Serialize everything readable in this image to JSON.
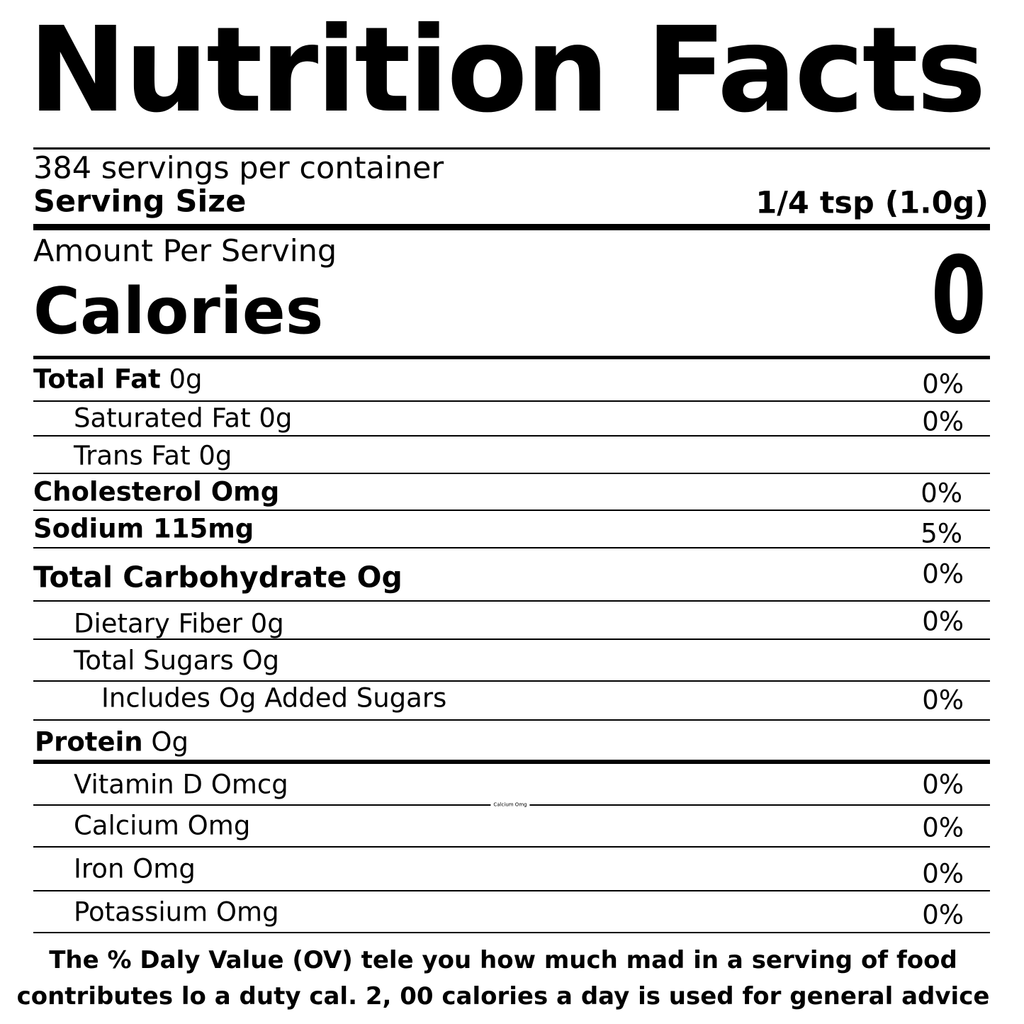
{
  "title": "Nutrition Facts",
  "servings": "384 servings per container",
  "serving_size": {
    "label": "Serving Size",
    "value": "1/4 tsp (1.0g)"
  },
  "amount_per_serving": "Amount Per Serving",
  "calories": {
    "label": "Calories",
    "value": "0"
  },
  "rows": [
    {
      "label": "Total Fat",
      "amount": "0g",
      "dv": "0%"
    },
    {
      "label": "Saturated Fat 0g",
      "dv": "0%"
    },
    {
      "label": "Trans Fat 0g"
    },
    {
      "label": "Cholesterol Omg",
      "dv": "0%"
    },
    {
      "label": "Sodium 115mg",
      "dv": "5%"
    },
    {
      "label": "Total Carbohydrate Og",
      "dv": "0%"
    },
    {
      "label": "Dietary Fiber 0g",
      "dv": "0%"
    },
    {
      "label": "Total Sugars Og"
    },
    {
      "label": "Includes Og Added Sugars",
      "dv": "0%"
    },
    {
      "label": "Protein",
      "amount": "Og"
    },
    {
      "label": "Vitamin D Omcg",
      "dv": "0%"
    },
    {
      "label": "Calcium Omg",
      "dv": "0%"
    },
    {
      "label": "Iron Omg",
      "dv": "0%"
    },
    {
      "label": "Potassium Omg",
      "dv": "0%"
    }
  ],
  "stray_label": "Calcium Omg",
  "footnote": [
    "The % Daly Value (OV) tele you how much mad in a serving of food",
    "contributes lo a duty cal. 2, 00 calories a day is used for general advice"
  ]
}
